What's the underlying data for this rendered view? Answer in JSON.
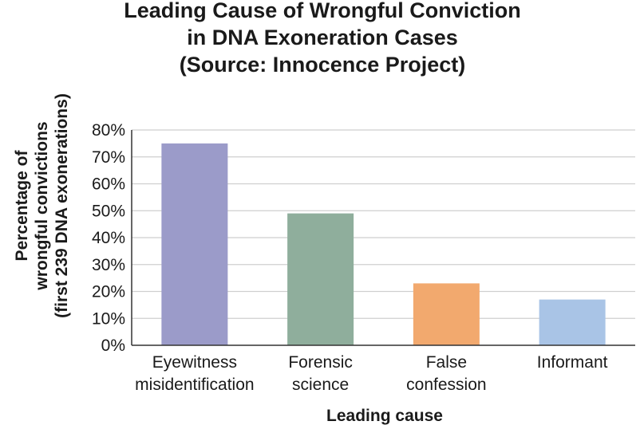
{
  "chart_data": {
    "type": "bar",
    "title": [
      "Leading Cause of Wrongful Conviction",
      "in DNA Exoneration Cases",
      "(Source: Innocence Project)"
    ],
    "xlabel": "Leading cause",
    "ylabel": [
      "Percentage of",
      "wrongful convictions",
      "(first 239 DNA exonerations)"
    ],
    "categories": [
      [
        "Eyewitness",
        "misidentification"
      ],
      [
        "Forensic",
        "science"
      ],
      [
        "False",
        "confession"
      ],
      [
        "Informant"
      ]
    ],
    "values": [
      75,
      49,
      23,
      17
    ],
    "colors": [
      "#9b9bc9",
      "#8fae9c",
      "#f2a96e",
      "#a9c4e6"
    ],
    "ylim": [
      0,
      80
    ],
    "yticks": [
      0,
      10,
      20,
      30,
      40,
      50,
      60,
      70,
      80
    ],
    "ytick_labels": [
      "0%",
      "10%",
      "20%",
      "30%",
      "40%",
      "50%",
      "60%",
      "70%",
      "80%"
    ],
    "grid": true,
    "legend": "none"
  }
}
